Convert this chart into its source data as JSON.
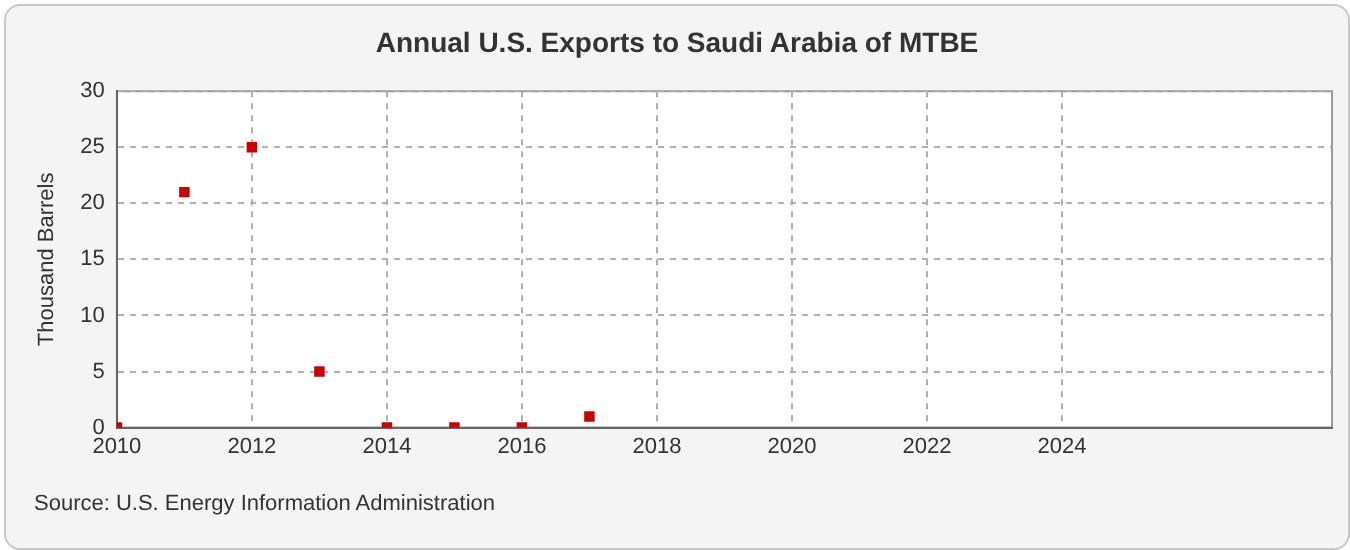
{
  "chart_data": {
    "type": "scatter",
    "title": "Annual U.S. Exports to Saudi Arabia of MTBE",
    "ylabel": "Thousand Barrels",
    "x": [
      2010,
      2011,
      2012,
      2013,
      2014,
      2015,
      2016,
      2017
    ],
    "series": [
      {
        "color": "#cc0000",
        "values": [
          0,
          21,
          25,
          5,
          0,
          0,
          0,
          1
        ]
      }
    ],
    "xlim": [
      2010,
      2028
    ],
    "xticks": [
      2010,
      2012,
      2014,
      2016,
      2018,
      2020,
      2022,
      2024
    ],
    "ylim": [
      0,
      30
    ],
    "yticks": [
      0,
      5,
      10,
      15,
      20,
      25,
      30
    ],
    "grid": true,
    "marker": "square",
    "legend": false,
    "annotations": [
      "Source: U.S. Energy Information Administration"
    ]
  }
}
